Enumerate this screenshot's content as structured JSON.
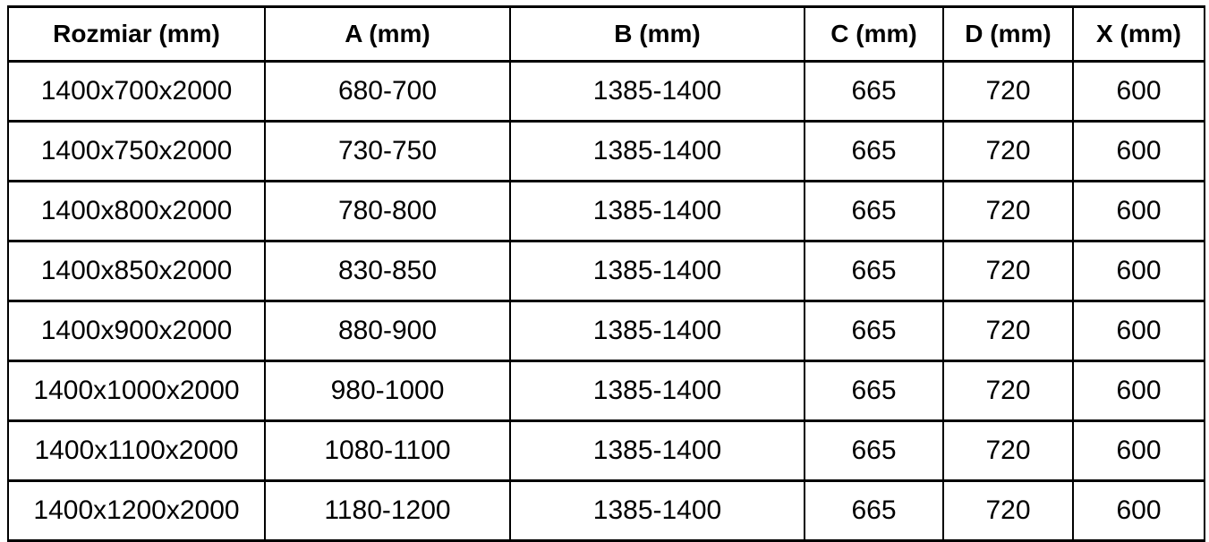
{
  "table": {
    "columns": [
      "Rozmiar (mm)",
      "A (mm)",
      "B (mm)",
      "C (mm)",
      "D (mm)",
      "X (mm)"
    ],
    "rows": [
      [
        "1400x700x2000",
        "680-700",
        "1385-1400",
        "665",
        "720",
        "600"
      ],
      [
        "1400x750x2000",
        "730-750",
        "1385-1400",
        "665",
        "720",
        "600"
      ],
      [
        "1400x800x2000",
        "780-800",
        "1385-1400",
        "665",
        "720",
        "600"
      ],
      [
        "1400x850x2000",
        "830-850",
        "1385-1400",
        "665",
        "720",
        "600"
      ],
      [
        "1400x900x2000",
        "880-900",
        "1385-1400",
        "665",
        "720",
        "600"
      ],
      [
        "1400x1000x2000",
        "980-1000",
        "1385-1400",
        "665",
        "720",
        "600"
      ],
      [
        "1400x1100x2000",
        "1080-1100",
        "1385-1400",
        "665",
        "720",
        "600"
      ],
      [
        "1400x1200x2000",
        "1180-1200",
        "1385-1400",
        "665",
        "720",
        "600"
      ]
    ],
    "colors": {
      "border": "#000000",
      "text": "#000000",
      "background": "#ffffff"
    }
  }
}
